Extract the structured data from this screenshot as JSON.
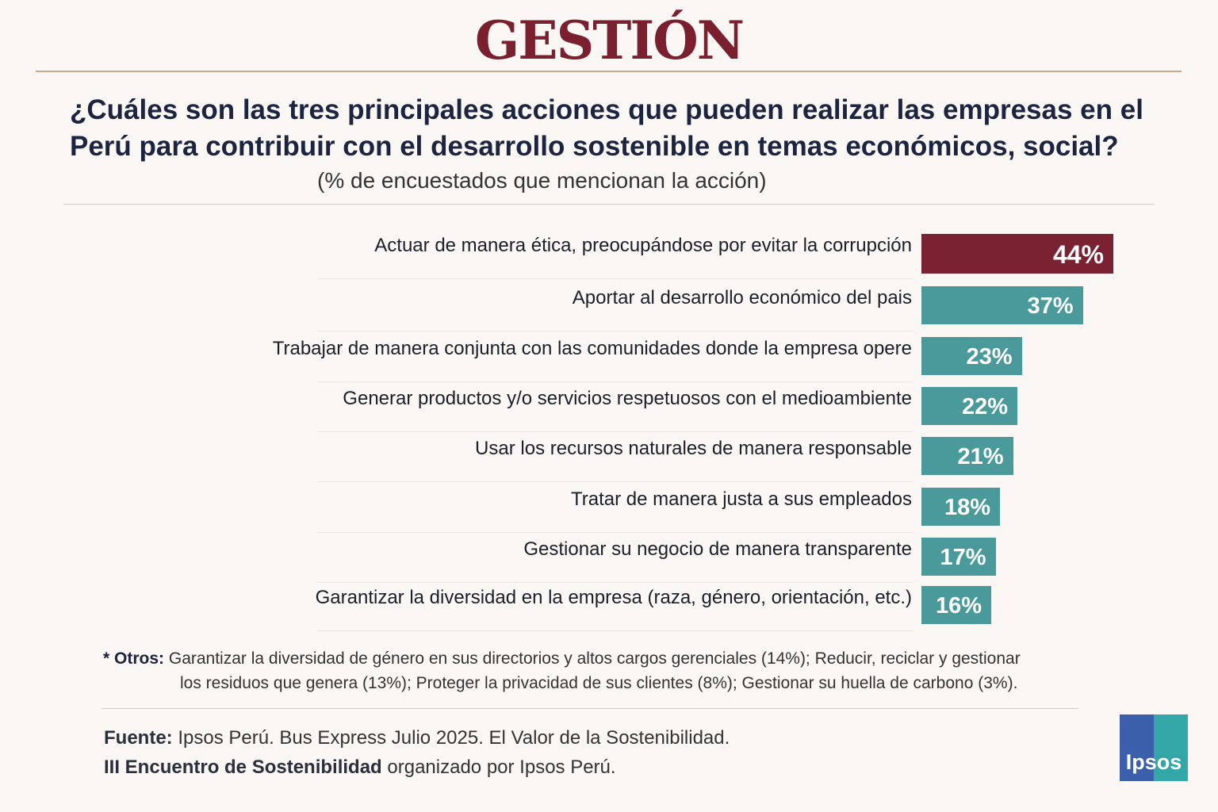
{
  "header": {
    "logo": "GESTIÓN"
  },
  "chart_data": {
    "type": "bar",
    "orientation": "horizontal",
    "title": "¿Cuáles son las tres principales acciones que pueden realizar las empresas en el Perú para contribuir con el desarrollo sostenible en temas económicos, social?",
    "subtitle": "(% de encuestados que mencionan la acción)",
    "categories": [
      "Actuar de manera ética, preocupándose por evitar la corrupción",
      "Aportar al desarrollo económico del pais",
      "Trabajar de manera conjunta con las comunidades donde la empresa opere",
      "Generar productos y/o servicios respetuosos con el medioambiente",
      "Usar los recursos naturales de manera responsable",
      "Tratar de manera justa a sus empleados",
      "Gestionar su negocio de manera transparente",
      "Garantizar la diversidad en la empresa (raza, género, orientación, etc.)"
    ],
    "values": [
      44,
      37,
      23,
      22,
      21,
      18,
      17,
      16
    ],
    "data_labels": [
      "44%",
      "37%",
      "23%",
      "22%",
      "21%",
      "18%",
      "17%",
      "16%"
    ],
    "colors": {
      "highlight": "#7a2232",
      "default": "#4a9a9c"
    },
    "grid": false
  },
  "notes": {
    "otros_label": "* Otros:",
    "otros_line1": "Garantizar la diversidad de género en sus directorios y altos cargos gerenciales (14%); Reducir, reciclar y gestionar",
    "otros_line2": "los residuos que genera (13%); Proteger la privacidad de sus clientes (8%); Gestionar su huella de carbono (3%).",
    "fuente_label": "Fuente:",
    "fuente_text": "Ipsos Perú. Bus Express Julio 2025. El Valor de la Sostenibilidad.",
    "encuentro_label": "III Encuentro de Sostenibilidad",
    "encuentro_text": "organizado por Ipsos Perú."
  },
  "brand": {
    "ipsos": "Ipsos"
  }
}
